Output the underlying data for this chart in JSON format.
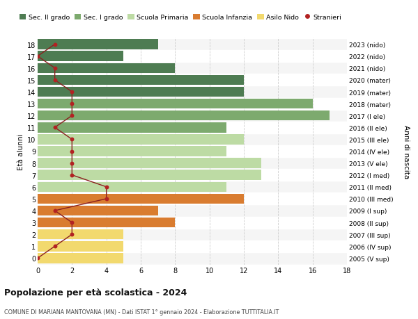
{
  "ages": [
    18,
    17,
    16,
    15,
    14,
    13,
    12,
    11,
    10,
    9,
    8,
    7,
    6,
    5,
    4,
    3,
    2,
    1,
    0
  ],
  "right_labels": [
    "2005 (V sup)",
    "2006 (IV sup)",
    "2007 (III sup)",
    "2008 (II sup)",
    "2009 (I sup)",
    "2010 (III med)",
    "2011 (II med)",
    "2012 (I med)",
    "2013 (V ele)",
    "2014 (IV ele)",
    "2015 (III ele)",
    "2016 (II ele)",
    "2017 (I ele)",
    "2018 (mater)",
    "2019 (mater)",
    "2020 (mater)",
    "2021 (nido)",
    "2022 (nido)",
    "2023 (nido)"
  ],
  "bar_values": [
    7,
    5,
    8,
    12,
    12,
    16,
    17,
    11,
    12,
    11,
    13,
    13,
    11,
    12,
    7,
    8,
    5,
    5,
    5
  ],
  "bar_colors": [
    "#4e7c52",
    "#4e7c52",
    "#4e7c52",
    "#4e7c52",
    "#4e7c52",
    "#7daa6e",
    "#7daa6e",
    "#7daa6e",
    "#bddba4",
    "#bddba4",
    "#bddba4",
    "#bddba4",
    "#bddba4",
    "#d97c30",
    "#d97c30",
    "#d97c30",
    "#f2d96e",
    "#f2d96e",
    "#f2d96e"
  ],
  "stranieri_values": [
    1,
    0,
    1,
    1,
    2,
    2,
    2,
    1,
    2,
    2,
    2,
    2,
    4,
    4,
    1,
    2,
    2,
    1,
    0
  ],
  "title_bold": "Popolazione per età scolastica - 2024",
  "subtitle": "COMUNE DI MARIANA MANTOVANA (MN) - Dati ISTAT 1° gennaio 2024 - Elaborazione TUTTITALIA.IT",
  "ylabel": "Età alunni",
  "right_ylabel": "Anni di nascita",
  "xlim": [
    0,
    18
  ],
  "legend_items": [
    {
      "label": "Sec. II grado",
      "color": "#4e7c52"
    },
    {
      "label": "Sec. I grado",
      "color": "#7daa6e"
    },
    {
      "label": "Scuola Primaria",
      "color": "#bddba4"
    },
    {
      "label": "Scuola Infanzia",
      "color": "#d97c30"
    },
    {
      "label": "Asilo Nido",
      "color": "#f2d96e"
    },
    {
      "label": "Stranieri",
      "color": "#b22222"
    }
  ],
  "grid_color": "#cccccc",
  "bg_color": "#ffffff",
  "row_bg_even": "#f5f5f5",
  "bar_height": 0.85,
  "stranieri_line_color": "#8b2020",
  "stranieri_marker_color": "#b22222"
}
